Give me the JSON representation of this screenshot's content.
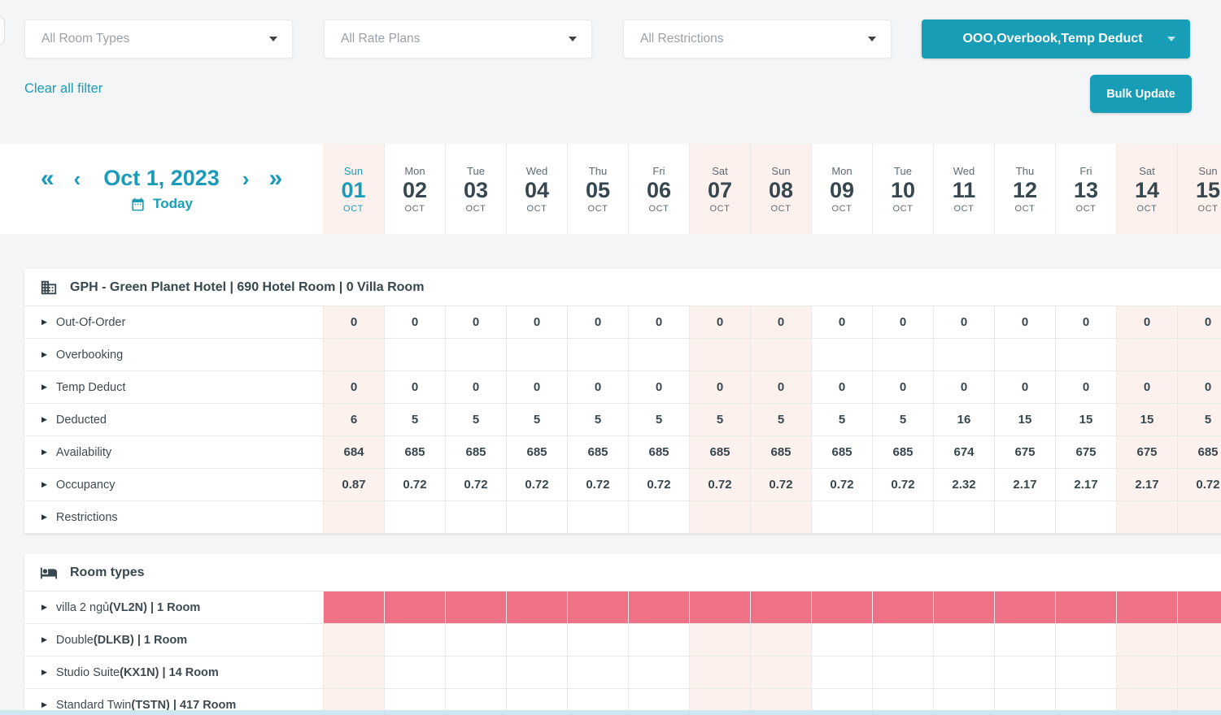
{
  "filters": {
    "room_types_value": "All Room Types",
    "rate_plans_value": "All Rate Plans",
    "restrictions_value": "All Restrictions",
    "inventory_mode_value": "OOO,Overbook,Temp Deduct",
    "clear_all_label": "Clear all filter",
    "bulk_update_label": "Bulk Update"
  },
  "date_nav": {
    "current_date": "Oct 1, 2023",
    "today_label": "Today",
    "fast_back_glyph": "«",
    "back_glyph": "‹",
    "forward_glyph": "›",
    "fast_forward_glyph": "»"
  },
  "calendar": {
    "days": [
      {
        "dow": "Sun",
        "day": "01",
        "month": "OCT",
        "weekend": true,
        "today": true
      },
      {
        "dow": "Mon",
        "day": "02",
        "month": "OCT",
        "weekend": false,
        "today": false
      },
      {
        "dow": "Tue",
        "day": "03",
        "month": "OCT",
        "weekend": false,
        "today": false
      },
      {
        "dow": "Wed",
        "day": "04",
        "month": "OCT",
        "weekend": false,
        "today": false
      },
      {
        "dow": "Thu",
        "day": "05",
        "month": "OCT",
        "weekend": false,
        "today": false
      },
      {
        "dow": "Fri",
        "day": "06",
        "month": "OCT",
        "weekend": false,
        "today": false
      },
      {
        "dow": "Sat",
        "day": "07",
        "month": "OCT",
        "weekend": true,
        "today": false
      },
      {
        "dow": "Sun",
        "day": "08",
        "month": "OCT",
        "weekend": true,
        "today": false
      },
      {
        "dow": "Mon",
        "day": "09",
        "month": "OCT",
        "weekend": false,
        "today": false
      },
      {
        "dow": "Tue",
        "day": "10",
        "month": "OCT",
        "weekend": false,
        "today": false
      },
      {
        "dow": "Wed",
        "day": "11",
        "month": "OCT",
        "weekend": false,
        "today": false
      },
      {
        "dow": "Thu",
        "day": "12",
        "month": "OCT",
        "weekend": false,
        "today": false
      },
      {
        "dow": "Fri",
        "day": "13",
        "month": "OCT",
        "weekend": false,
        "today": false
      },
      {
        "dow": "Sat",
        "day": "14",
        "month": "OCT",
        "weekend": true,
        "today": false
      },
      {
        "dow": "Sun",
        "day": "15",
        "month": "OCT",
        "weekend": true,
        "today": false
      }
    ]
  },
  "hotel": {
    "title": "GPH - Green Planet Hotel | 690 Hotel Room | 0 Villa Room",
    "rows": [
      {
        "label": "Out-Of-Order",
        "values": [
          "0",
          "0",
          "0",
          "0",
          "0",
          "0",
          "0",
          "0",
          "0",
          "0",
          "0",
          "0",
          "0",
          "0",
          "0"
        ]
      },
      {
        "label": "Overbooking",
        "values": [
          "",
          "",
          "",
          "",
          "",
          "",
          "",
          "",
          "",
          "",
          "",
          "",
          "",
          "",
          ""
        ]
      },
      {
        "label": "Temp Deduct",
        "values": [
          "0",
          "0",
          "0",
          "0",
          "0",
          "0",
          "0",
          "0",
          "0",
          "0",
          "0",
          "0",
          "0",
          "0",
          "0"
        ]
      },
      {
        "label": "Deducted",
        "values": [
          "6",
          "5",
          "5",
          "5",
          "5",
          "5",
          "5",
          "5",
          "5",
          "5",
          "16",
          "15",
          "15",
          "15",
          "5"
        ]
      },
      {
        "label": "Availability",
        "values": [
          "684",
          "685",
          "685",
          "685",
          "685",
          "685",
          "685",
          "685",
          "685",
          "685",
          "674",
          "675",
          "675",
          "675",
          "685"
        ]
      },
      {
        "label": "Occupancy",
        "values": [
          "0.87",
          "0.72",
          "0.72",
          "0.72",
          "0.72",
          "0.72",
          "0.72",
          "0.72",
          "0.72",
          "0.72",
          "2.32",
          "2.17",
          "2.17",
          "2.17",
          "0.72"
        ]
      },
      {
        "label": "Restrictions",
        "values": [
          "",
          "",
          "",
          "",
          "",
          "",
          "",
          "",
          "",
          "",
          "",
          "",
          "",
          "",
          ""
        ]
      }
    ]
  },
  "room_types": {
    "title": "Room types",
    "rows": [
      {
        "name": "villa 2 ngủ",
        "details": "(VL2N) | 1 Room",
        "sold_out": true
      },
      {
        "name": "Double",
        "details": "(DLKB) | 1 Room",
        "sold_out": false
      },
      {
        "name": "Studio Suite",
        "details": "(KX1N) | 14 Room",
        "sold_out": false
      },
      {
        "name": "Standard Twin",
        "details": "(TSTN) | 417 Room",
        "sold_out": false
      }
    ]
  },
  "icons": {
    "hotel_header": "building-icon",
    "room_types_header": "bed-icon",
    "today": "calendar-icon",
    "row_expand": "▶"
  },
  "colors": {
    "accent_teal": "#189db6",
    "weekend_bg": "#fdf1ee",
    "sold_out_red": "#ee7186",
    "scrollbar_blue": "#cde6f1",
    "text_dark": "#37474f"
  }
}
